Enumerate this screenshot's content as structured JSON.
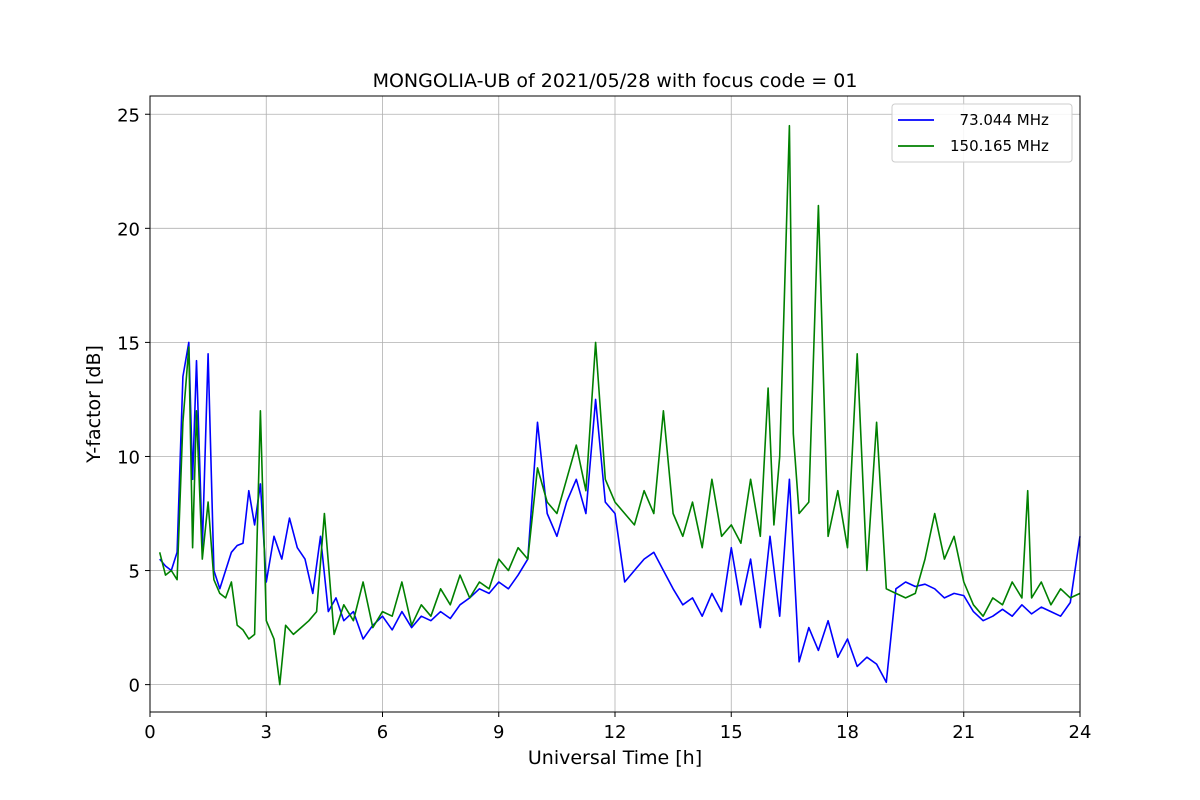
{
  "chart_data": {
    "type": "line",
    "title": "MONGOLIA-UB of 2021/05/28 with focus code = 01",
    "xlabel": "Universal Time [h]",
    "ylabel": "Y-factor [dB]",
    "xlim": [
      0,
      24
    ],
    "ylim": [
      -1.2,
      25.8
    ],
    "xticks": [
      0,
      3,
      6,
      9,
      12,
      15,
      18,
      21,
      24
    ],
    "yticks": [
      0,
      5,
      10,
      15,
      20,
      25
    ],
    "grid": true,
    "legend_position": "top-right",
    "series": [
      {
        "name": "  73.044 MHz",
        "color": "#0000ff",
        "x": [
          0.25,
          0.4,
          0.55,
          0.7,
          0.85,
          1.0,
          1.1,
          1.2,
          1.35,
          1.5,
          1.65,
          1.8,
          1.95,
          2.1,
          2.25,
          2.4,
          2.55,
          2.7,
          2.85,
          3.0,
          3.2,
          3.4,
          3.6,
          3.8,
          4.0,
          4.2,
          4.4,
          4.6,
          4.8,
          5.0,
          5.25,
          5.5,
          5.75,
          6.0,
          6.25,
          6.5,
          6.75,
          7.0,
          7.25,
          7.5,
          7.75,
          8.0,
          8.25,
          8.5,
          8.75,
          9.0,
          9.25,
          9.5,
          9.75,
          10.0,
          10.25,
          10.5,
          10.75,
          11.0,
          11.25,
          11.5,
          11.75,
          12.0,
          12.25,
          12.5,
          12.75,
          13.0,
          13.25,
          13.5,
          13.75,
          14.0,
          14.25,
          14.5,
          14.75,
          15.0,
          15.25,
          15.5,
          15.75,
          16.0,
          16.25,
          16.5,
          16.75,
          17.0,
          17.25,
          17.5,
          17.75,
          18.0,
          18.25,
          18.5,
          18.75,
          19.0,
          19.25,
          19.5,
          19.75,
          20.0,
          20.25,
          20.5,
          20.75,
          21.0,
          21.25,
          21.5,
          21.75,
          22.0,
          22.25,
          22.5,
          22.75,
          23.0,
          23.25,
          23.5,
          23.75,
          24.0
        ],
        "y": [
          5.5,
          5.2,
          5.0,
          5.8,
          13.5,
          15.0,
          9.0,
          14.2,
          6.0,
          14.5,
          5.0,
          4.2,
          5.0,
          5.8,
          6.1,
          6.2,
          8.5,
          7.0,
          8.8,
          4.5,
          6.5,
          5.5,
          7.3,
          6.0,
          5.5,
          4.0,
          6.5,
          3.2,
          3.8,
          2.8,
          3.2,
          2.0,
          2.6,
          3.0,
          2.4,
          3.2,
          2.5,
          3.0,
          2.8,
          3.2,
          2.9,
          3.5,
          3.8,
          4.2,
          4.0,
          4.5,
          4.2,
          4.8,
          5.5,
          11.5,
          7.5,
          6.5,
          8.0,
          9.0,
          7.5,
          12.5,
          8.0,
          7.5,
          4.5,
          5.0,
          5.5,
          5.8,
          5.0,
          4.2,
          3.5,
          3.8,
          3.0,
          4.0,
          3.2,
          6.0,
          3.5,
          5.5,
          2.5,
          6.5,
          3.0,
          9.0,
          1.0,
          2.5,
          1.5,
          2.8,
          1.2,
          2.0,
          0.8,
          1.2,
          0.9,
          0.1,
          4.2,
          4.5,
          4.3,
          4.4,
          4.2,
          3.8,
          4.0,
          3.9,
          3.2,
          2.8,
          3.0,
          3.3,
          3.0,
          3.5,
          3.1,
          3.4,
          3.2,
          3.0,
          3.6,
          6.5
        ]
      },
      {
        "name": "150.165 MHz",
        "color": "#008000",
        "x": [
          0.25,
          0.4,
          0.55,
          0.7,
          0.85,
          1.0,
          1.1,
          1.2,
          1.35,
          1.5,
          1.65,
          1.8,
          1.95,
          2.1,
          2.25,
          2.4,
          2.55,
          2.7,
          2.85,
          3.0,
          3.2,
          3.35,
          3.5,
          3.7,
          3.9,
          4.1,
          4.3,
          4.5,
          4.75,
          5.0,
          5.25,
          5.5,
          5.75,
          6.0,
          6.25,
          6.5,
          6.75,
          7.0,
          7.25,
          7.5,
          7.75,
          8.0,
          8.25,
          8.5,
          8.75,
          9.0,
          9.25,
          9.5,
          9.75,
          10.0,
          10.25,
          10.5,
          10.75,
          11.0,
          11.25,
          11.5,
          11.75,
          12.0,
          12.25,
          12.5,
          12.75,
          13.0,
          13.25,
          13.5,
          13.75,
          14.0,
          14.25,
          14.5,
          14.75,
          15.0,
          15.25,
          15.5,
          15.75,
          15.95,
          16.1,
          16.25,
          16.5,
          16.6,
          16.75,
          17.0,
          17.25,
          17.5,
          17.75,
          18.0,
          18.25,
          18.5,
          18.75,
          19.0,
          19.25,
          19.5,
          19.75,
          20.0,
          20.25,
          20.5,
          20.75,
          21.0,
          21.25,
          21.5,
          21.75,
          22.0,
          22.25,
          22.5,
          22.65,
          22.75,
          23.0,
          23.25,
          23.5,
          23.75,
          24.0
        ],
        "y": [
          5.8,
          4.8,
          5.0,
          4.6,
          11.5,
          14.8,
          6.0,
          12.0,
          5.5,
          8.0,
          4.6,
          4.0,
          3.8,
          4.5,
          2.6,
          2.4,
          2.0,
          2.2,
          12.0,
          2.8,
          2.0,
          0.0,
          2.6,
          2.2,
          2.5,
          2.8,
          3.2,
          7.5,
          2.2,
          3.5,
          2.8,
          4.5,
          2.5,
          3.2,
          3.0,
          4.5,
          2.6,
          3.5,
          3.0,
          4.2,
          3.5,
          4.8,
          3.8,
          4.5,
          4.2,
          5.5,
          5.0,
          6.0,
          5.5,
          9.5,
          8.0,
          7.5,
          9.0,
          10.5,
          8.5,
          15.0,
          9.0,
          8.0,
          7.5,
          7.0,
          8.5,
          7.5,
          12.0,
          7.5,
          6.5,
          8.0,
          6.0,
          9.0,
          6.5,
          7.0,
          6.2,
          9.0,
          6.5,
          13.0,
          7.0,
          10.0,
          24.5,
          11.0,
          7.5,
          8.0,
          21.0,
          6.5,
          8.5,
          6.0,
          14.5,
          5.0,
          11.5,
          4.2,
          4.0,
          3.8,
          4.0,
          5.5,
          7.5,
          5.5,
          6.5,
          4.5,
          3.5,
          3.0,
          3.8,
          3.5,
          4.5,
          3.8,
          8.5,
          3.8,
          4.5,
          3.5,
          4.2,
          3.8,
          4.0
        ]
      }
    ]
  }
}
